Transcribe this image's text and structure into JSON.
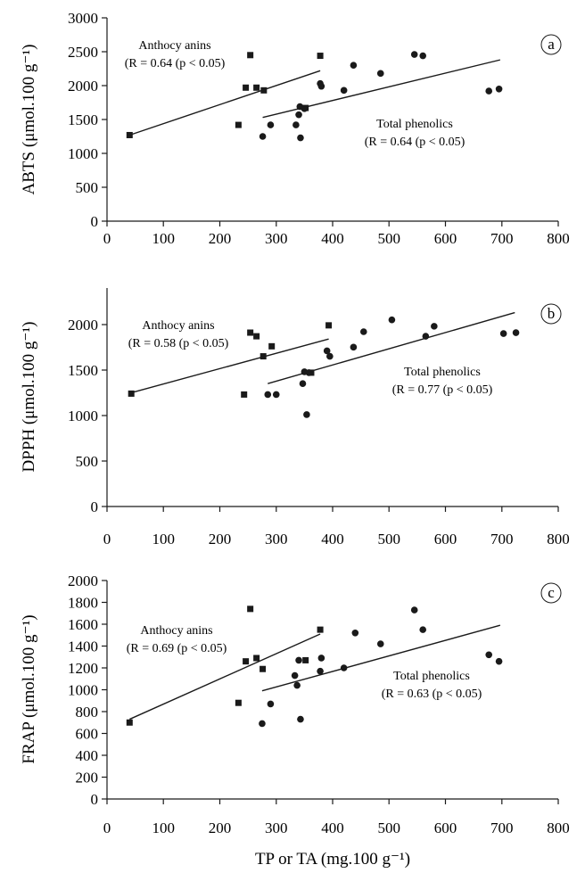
{
  "chart_data": [
    {
      "type": "scatter",
      "panel_label": "a",
      "ylabel": "ABTS (μmol.100 g⁻¹)",
      "xlim": [
        0,
        800
      ],
      "ylim": [
        0,
        3000
      ],
      "x_ticks": [
        "0",
        "100",
        "200",
        "300",
        "400",
        "500",
        "600",
        "700",
        "800"
      ],
      "y_ticks": [
        "0",
        "500",
        "1000",
        "1500",
        "2000",
        "2500",
        "3000"
      ],
      "series": [
        {
          "name": "Anthocy anins",
          "marker": "square",
          "stat": "(R = 0.64 (p < 0.05)",
          "points": [
            [
              40,
              1270
            ],
            [
              233,
              1420
            ],
            [
              246,
              1970
            ],
            [
              254,
              2450
            ],
            [
              265,
              1970
            ],
            [
              278,
              1930
            ],
            [
              352,
              1670
            ],
            [
              378,
              2440
            ]
          ],
          "fit": [
            [
              40,
              1270
            ],
            [
              378,
              2220
            ]
          ]
        },
        {
          "name": "Total phenolics",
          "marker": "circle",
          "stat": "(R = 0.64 (p < 0.05)",
          "points": [
            [
              276,
              1250
            ],
            [
              290,
              1420
            ],
            [
              335,
              1420
            ],
            [
              340,
              1570
            ],
            [
              342,
              1690
            ],
            [
              343,
              1230
            ],
            [
              350,
              1660
            ],
            [
              378,
              2030
            ],
            [
              380,
              1990
            ],
            [
              420,
              1930
            ],
            [
              437,
              2300
            ],
            [
              485,
              2180
            ],
            [
              545,
              2460
            ],
            [
              560,
              2440
            ],
            [
              677,
              1920
            ],
            [
              695,
              1950
            ]
          ],
          "fit": [
            [
              276,
              1530
            ],
            [
              697,
              2380
            ]
          ]
        }
      ]
    },
    {
      "type": "scatter",
      "panel_label": "b",
      "ylabel": "DPPH (μmol.100 g⁻¹)",
      "xlim": [
        0,
        800
      ],
      "ylim": [
        0,
        2400
      ],
      "x_ticks": [
        "0",
        "100",
        "200",
        "300",
        "400",
        "500",
        "600",
        "700",
        "800"
      ],
      "y_ticks": [
        "0",
        "500",
        "1000",
        "1500",
        "2000"
      ],
      "series": [
        {
          "name": "Anthocy anins",
          "marker": "square",
          "stat": "(R = 0.58 (p < 0.05)",
          "points": [
            [
              43,
              1240
            ],
            [
              243,
              1230
            ],
            [
              254,
              1910
            ],
            [
              265,
              1870
            ],
            [
              277,
              1650
            ],
            [
              292,
              1760
            ],
            [
              362,
              1470
            ],
            [
              393,
              1990
            ]
          ],
          "fit": [
            [
              43,
              1250
            ],
            [
              393,
              1840
            ]
          ]
        },
        {
          "name": "Total phenolics",
          "marker": "circle",
          "stat": "(R = 0.77 (p < 0.05)",
          "points": [
            [
              285,
              1230
            ],
            [
              300,
              1230
            ],
            [
              347,
              1350
            ],
            [
              350,
              1480
            ],
            [
              354,
              1010
            ],
            [
              358,
              1470
            ],
            [
              390,
              1710
            ],
            [
              395,
              1650
            ],
            [
              437,
              1750
            ],
            [
              455,
              1920
            ],
            [
              505,
              2050
            ],
            [
              565,
              1870
            ],
            [
              580,
              1980
            ],
            [
              703,
              1900
            ],
            [
              725,
              1910
            ]
          ],
          "fit": [
            [
              285,
              1350
            ],
            [
              723,
              2130
            ]
          ]
        }
      ]
    },
    {
      "type": "scatter",
      "panel_label": "c",
      "ylabel": "FRAP (μmol.100 g⁻¹)",
      "xlabel": "TP or TA (mg.100 g⁻¹)",
      "xlim": [
        0,
        800
      ],
      "ylim": [
        0,
        2000
      ],
      "x_ticks": [
        "0",
        "100",
        "200",
        "300",
        "400",
        "500",
        "600",
        "700",
        "800"
      ],
      "y_ticks": [
        "0",
        "200",
        "400",
        "600",
        "800",
        "1000",
        "1200",
        "1400",
        "1600",
        "1800",
        "2000"
      ],
      "series": [
        {
          "name": "Anthocy anins",
          "marker": "square",
          "stat": "(R = 0.69 (p < 0.05)",
          "points": [
            [
              40,
              700
            ],
            [
              233,
              880
            ],
            [
              246,
              1260
            ],
            [
              254,
              1740
            ],
            [
              265,
              1290
            ],
            [
              276,
              1190
            ],
            [
              352,
              1270
            ],
            [
              378,
              1550
            ]
          ],
          "fit": [
            [
              40,
              730
            ],
            [
              378,
              1510
            ]
          ]
        },
        {
          "name": "Total phenolics",
          "marker": "circle",
          "stat": "(R = 0.63 (p < 0.05)",
          "points": [
            [
              275,
              690
            ],
            [
              290,
              870
            ],
            [
              333,
              1130
            ],
            [
              337,
              1040
            ],
            [
              340,
              1270
            ],
            [
              343,
              730
            ],
            [
              378,
              1170
            ],
            [
              380,
              1290
            ],
            [
              420,
              1200
            ],
            [
              440,
              1520
            ],
            [
              485,
              1420
            ],
            [
              545,
              1730
            ],
            [
              560,
              1550
            ],
            [
              677,
              1320
            ],
            [
              695,
              1260
            ]
          ],
          "fit": [
            [
              275,
              990
            ],
            [
              697,
              1590
            ]
          ]
        }
      ]
    }
  ]
}
